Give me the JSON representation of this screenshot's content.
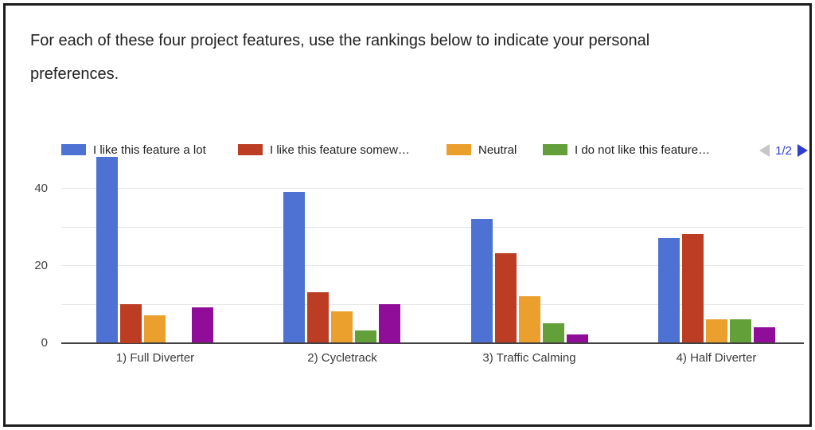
{
  "question": {
    "title": "For each of these four project features, use the rankings below to indicate your personal preferences."
  },
  "legend": {
    "items": [
      {
        "label": "I like this feature a lot",
        "color": "#4d72d3"
      },
      {
        "label": "I like this feature somew…",
        "color": "#bc3d24"
      },
      {
        "label": "Neutral",
        "color": "#eba02e"
      },
      {
        "label": "I do not like this feature…",
        "color": "#63a03a"
      }
    ],
    "pagination": {
      "label": "1/2",
      "text_color": "#2e3ed0",
      "next_arrow_color": "#2e3ed0",
      "prev_arrow_color": "#c6c6c6"
    }
  },
  "chart_data": {
    "type": "bar",
    "title": "",
    "xlabel": "",
    "ylabel": "",
    "grid": true,
    "legend_position": "top",
    "categories": [
      "1) Full Diverter",
      "2) Cycletrack",
      "3) Traffic Calming",
      "4) Half Diverter"
    ],
    "series": [
      {
        "name": "I like this feature a lot",
        "color": "#4d72d3",
        "values": [
          48,
          39,
          32,
          27
        ]
      },
      {
        "name": "I like this feature somew…",
        "color": "#bc3d24",
        "values": [
          10,
          13,
          23,
          28
        ]
      },
      {
        "name": "Neutral",
        "color": "#eba02e",
        "values": [
          7,
          8,
          12,
          6
        ]
      },
      {
        "name": "I do not like this feature…",
        "color": "#63a03a",
        "values": [
          0,
          3,
          5,
          6
        ]
      },
      {
        "name": "",
        "color": "#900d99",
        "values": [
          9,
          10,
          2,
          4
        ]
      }
    ],
    "yaxis": {
      "ticks": [
        0,
        20,
        40
      ],
      "gridlines": [
        0,
        10,
        20,
        30,
        40
      ],
      "ylim": [
        0,
        48
      ]
    }
  }
}
